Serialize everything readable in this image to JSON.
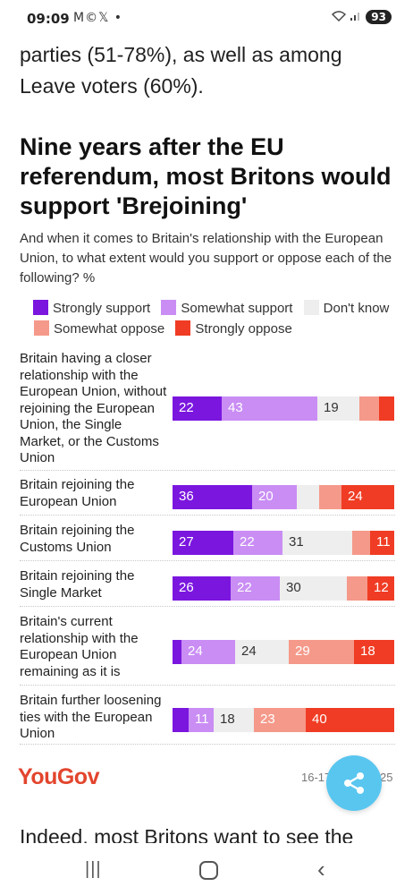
{
  "status_bar": {
    "time": "09:09",
    "notification_icons": "M©𝕏 •",
    "battery": "93"
  },
  "article": {
    "intro": "parties (51-78%), as well as among Leave voters (60%).",
    "next_paragraph": "Indeed, most Britons want to see the"
  },
  "chart_data": {
    "type": "bar",
    "orientation": "horizontal-stacked-100",
    "title": "Nine years after the EU referendum, most Britons would support 'Brejoining'",
    "subtitle": "And when it comes to Britain's relationship with the European Union, to what extent would you support or oppose each of the following? %",
    "legend_placement": "top",
    "series": [
      {
        "name": "Strongly support",
        "color": "#7b16df"
      },
      {
        "name": "Somewhat support",
        "color": "#c98df4"
      },
      {
        "name": "Don't know",
        "color": "#eeeeee"
      },
      {
        "name": "Somewhat oppose",
        "color": "#f5998a"
      },
      {
        "name": "Strongly oppose",
        "color": "#f03c24"
      }
    ],
    "categories": [
      "Britain having a closer relationship with the European Union, without rejoining the European Union, the Single Market, or the Customs Union",
      "Britain rejoining the European Union",
      "Britain rejoining the Customs Union",
      "Britain rejoining the Single Market",
      "Britain's current relationship with the European Union remaining as it is",
      "Britain further loosening ties with the European Union"
    ],
    "values": [
      [
        22,
        43,
        19,
        9,
        7
      ],
      [
        36,
        20,
        10,
        10,
        24
      ],
      [
        27,
        22,
        31,
        8,
        11
      ],
      [
        26,
        22,
        30,
        9,
        12
      ],
      [
        4,
        24,
        24,
        29,
        18
      ],
      [
        7,
        11,
        18,
        23,
        40
      ]
    ],
    "data_labels": [
      [
        "22",
        "43",
        "19",
        "",
        ""
      ],
      [
        "36",
        "20",
        "",
        "",
        "24"
      ],
      [
        "27",
        "22",
        "31",
        "",
        "11"
      ],
      [
        "26",
        "22",
        "30",
        "",
        "12"
      ],
      [
        "",
        "24",
        "24",
        "29",
        "18"
      ],
      [
        "",
        "11",
        "18",
        "23",
        "40"
      ]
    ],
    "source": "YouGov",
    "date_start": "16-17",
    "date_end": "25"
  },
  "share": {
    "icon": "share-icon"
  }
}
